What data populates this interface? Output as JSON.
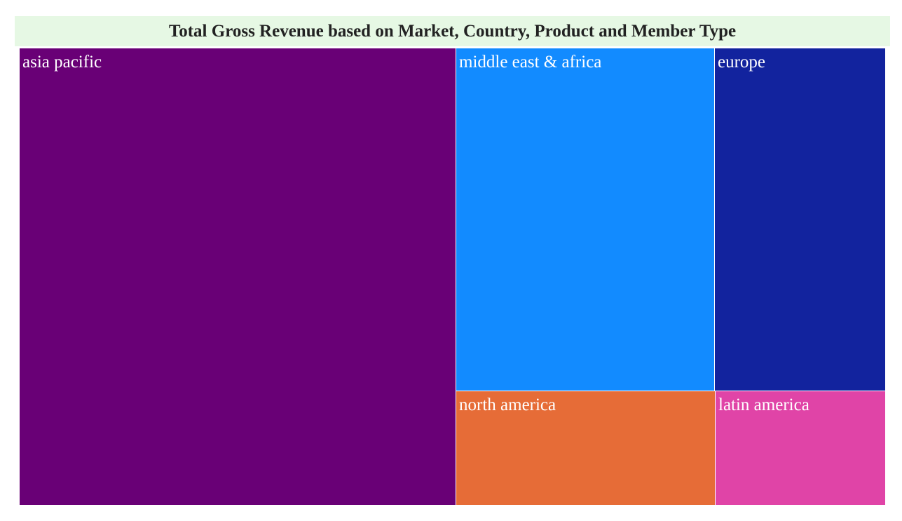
{
  "chart_data": {
    "type": "treemap",
    "title": "Total Gross Revenue based on Market, Country, Product and Member Type",
    "tiles": [
      {
        "label": "asia pacific",
        "value": 40.7,
        "color": "#690076"
      },
      {
        "label": "middle east & africa",
        "value": 18.1,
        "color": "#128bff"
      },
      {
        "label": "europe",
        "value": 11.9,
        "color": "#12239e"
      },
      {
        "label": "north america",
        "value": 6.1,
        "color": "#e66c37"
      },
      {
        "label": "latin america",
        "value": 4.0,
        "color": "#e044a7"
      }
    ]
  }
}
